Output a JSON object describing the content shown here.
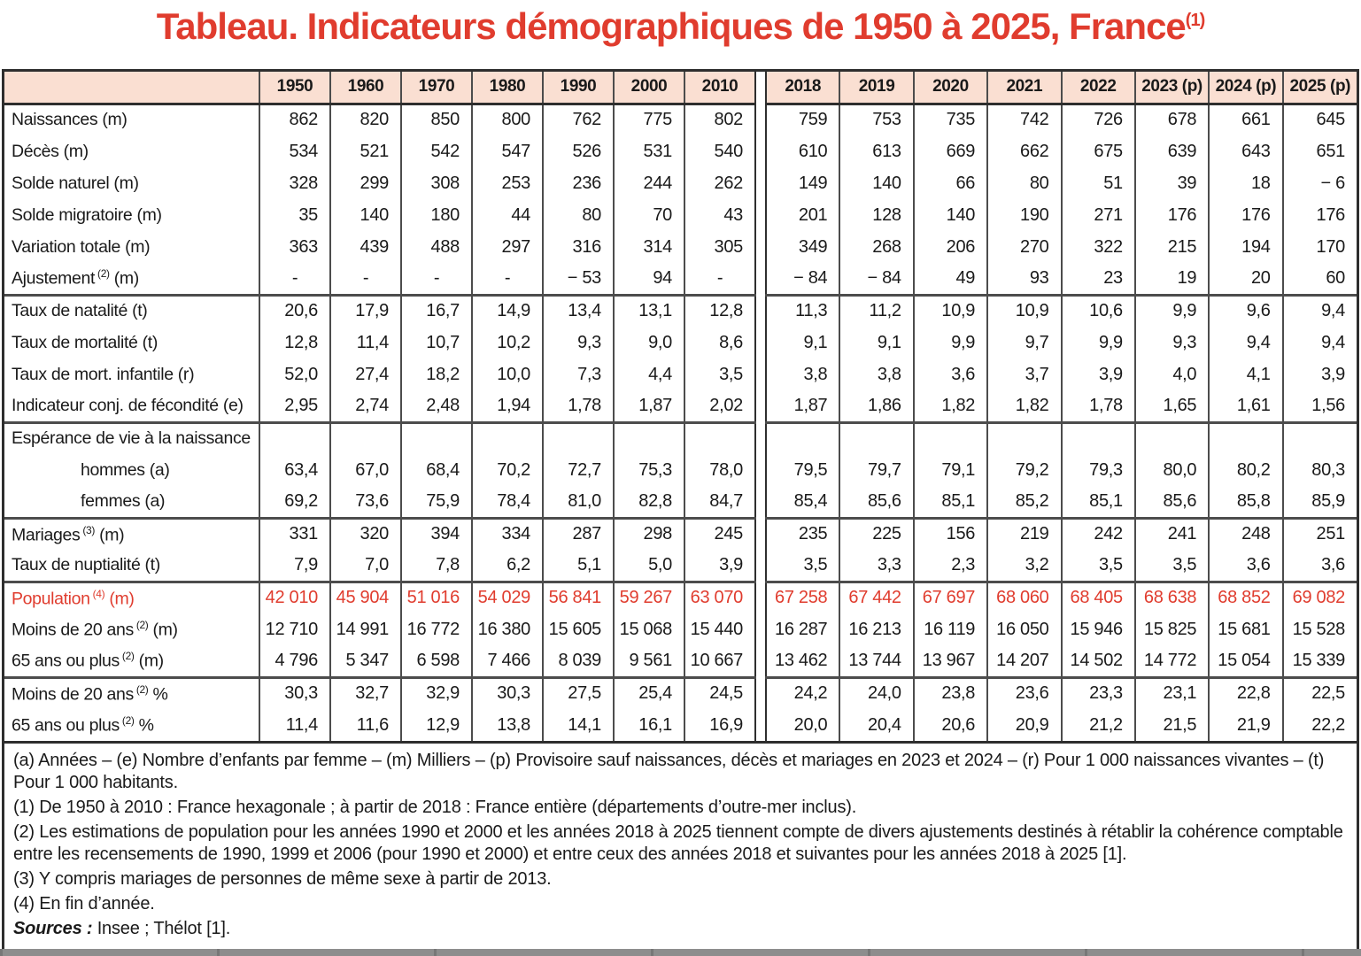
{
  "title": {
    "text": "Tableau. Indicateurs démographiques de 1950 à 2025, France",
    "superscript": "(1)"
  },
  "colors": {
    "accent_red": "#e03c2e",
    "header_bg": "#fadfd2",
    "grid_line": "#4c4c4c",
    "outer_border": "#2e2e2e",
    "bottom_bar": "#8a8a8a"
  },
  "table": {
    "columns": [
      "1950",
      "1960",
      "1970",
      "1980",
      "1990",
      "2000",
      "2010",
      "2018",
      "2019",
      "2020",
      "2021",
      "2022",
      "2023 (p)",
      "2024 (p)",
      "2025 (p)"
    ],
    "left_block_count": 7,
    "rows": [
      {
        "label": "Naissances (m)",
        "values": [
          "862",
          "820",
          "850",
          "800",
          "762",
          "775",
          "802",
          "759",
          "753",
          "735",
          "742",
          "726",
          "678",
          "661",
          "645"
        ]
      },
      {
        "label": "Décès (m)",
        "values": [
          "534",
          "521",
          "542",
          "547",
          "526",
          "531",
          "540",
          "610",
          "613",
          "669",
          "662",
          "675",
          "639",
          "643",
          "651"
        ]
      },
      {
        "label": "Solde naturel (m)",
        "values": [
          "328",
          "299",
          "308",
          "253",
          "236",
          "244",
          "262",
          "149",
          "140",
          "66",
          "80",
          "51",
          "39",
          "18",
          "− 6"
        ]
      },
      {
        "label": "Solde migratoire (m)",
        "values": [
          "35",
          "140",
          "180",
          "44",
          "80",
          "70",
          "43",
          "201",
          "128",
          "140",
          "190",
          "271",
          "176",
          "176",
          "176"
        ]
      },
      {
        "label": "Variation totale (m)",
        "values": [
          "363",
          "439",
          "488",
          "297",
          "316",
          "314",
          "305",
          "349",
          "268",
          "206",
          "270",
          "322",
          "215",
          "194",
          "170"
        ]
      },
      {
        "label": "Ajustement",
        "sup": "(2)",
        "suffix": " (m)",
        "values": [
          "-",
          "-",
          "-",
          "-",
          "− 53",
          "94",
          "-",
          "− 84",
          "− 84",
          "49",
          "93",
          "23",
          "19",
          "20",
          "60"
        ]
      },
      {
        "label": "Taux de natalité (t)",
        "group_start": true,
        "values": [
          "20,6",
          "17,9",
          "16,7",
          "14,9",
          "13,4",
          "13,1",
          "12,8",
          "11,3",
          "11,2",
          "10,9",
          "10,9",
          "10,6",
          "9,9",
          "9,6",
          "9,4"
        ]
      },
      {
        "label": "Taux de mortalité (t)",
        "values": [
          "12,8",
          "11,4",
          "10,7",
          "10,2",
          "9,3",
          "9,0",
          "8,6",
          "9,1",
          "9,1",
          "9,9",
          "9,7",
          "9,9",
          "9,3",
          "9,4",
          "9,4"
        ]
      },
      {
        "label": "Taux de mort. infantile (r)",
        "values": [
          "52,0",
          "27,4",
          "18,2",
          "10,0",
          "7,3",
          "4,4",
          "3,5",
          "3,8",
          "3,8",
          "3,6",
          "3,7",
          "3,9",
          "4,0",
          "4,1",
          "3,9"
        ]
      },
      {
        "label": "Indicateur conj. de fécondité (e)",
        "values": [
          "2,95",
          "2,74",
          "2,48",
          "1,94",
          "1,78",
          "1,87",
          "2,02",
          "1,87",
          "1,86",
          "1,82",
          "1,82",
          "1,78",
          "1,65",
          "1,61",
          "1,56"
        ]
      },
      {
        "label": "Espérance de vie à la naissance",
        "group_start": true,
        "values": [
          "",
          "",
          "",
          "",
          "",
          "",
          "",
          "",
          "",
          "",
          "",
          "",
          "",
          "",
          ""
        ]
      },
      {
        "label": "hommes (a)",
        "indent": true,
        "values": [
          "63,4",
          "67,0",
          "68,4",
          "70,2",
          "72,7",
          "75,3",
          "78,0",
          "79,5",
          "79,7",
          "79,1",
          "79,2",
          "79,3",
          "80,0",
          "80,2",
          "80,3"
        ]
      },
      {
        "label": "femmes (a)",
        "indent": true,
        "values": [
          "69,2",
          "73,6",
          "75,9",
          "78,4",
          "81,0",
          "82,8",
          "84,7",
          "85,4",
          "85,6",
          "85,1",
          "85,2",
          "85,1",
          "85,6",
          "85,8",
          "85,9"
        ]
      },
      {
        "label": "Mariages",
        "sup": "(3)",
        "suffix": " (m)",
        "group_start": true,
        "values": [
          "331",
          "320",
          "394",
          "334",
          "287",
          "298",
          "245",
          "235",
          "225",
          "156",
          "219",
          "242",
          "241",
          "248",
          "251"
        ]
      },
      {
        "label": "Taux de nuptialité (t)",
        "values": [
          "7,9",
          "7,0",
          "7,8",
          "6,2",
          "5,1",
          "5,0",
          "3,9",
          "3,5",
          "3,3",
          "2,3",
          "3,2",
          "3,5",
          "3,5",
          "3,6",
          "3,6"
        ]
      },
      {
        "label": "Population",
        "sup": "(4)",
        "suffix": " (m)",
        "red": true,
        "group_start": true,
        "values": [
          "42 010",
          "45 904",
          "51 016",
          "54 029",
          "56 841",
          "59 267",
          "63 070",
          "67 258",
          "67 442",
          "67 697",
          "68 060",
          "68 405",
          "68 638",
          "68 852",
          "69 082"
        ]
      },
      {
        "label": "Moins de 20 ans",
        "sup": "(2)",
        "suffix": " (m)",
        "values": [
          "12 710",
          "14 991",
          "16 772",
          "16 380",
          "15 605",
          "15 068",
          "15 440",
          "16 287",
          "16 213",
          "16 119",
          "16 050",
          "15 946",
          "15 825",
          "15 681",
          "15 528"
        ]
      },
      {
        "label": "65 ans ou plus",
        "sup": "(2)",
        "suffix": " (m)",
        "values": [
          "4 796",
          "5 347",
          "6 598",
          "7 466",
          "8 039",
          "9 561",
          "10 667",
          "13 462",
          "13 744",
          "13 967",
          "14 207",
          "14 502",
          "14 772",
          "15 054",
          "15 339"
        ]
      },
      {
        "label": "Moins de 20 ans",
        "sup": "(2)",
        "suffix": " %",
        "group_start": true,
        "values": [
          "30,3",
          "32,7",
          "32,9",
          "30,3",
          "27,5",
          "25,4",
          "24,5",
          "24,2",
          "24,0",
          "23,8",
          "23,6",
          "23,3",
          "23,1",
          "22,8",
          "22,5"
        ]
      },
      {
        "label": "65 ans ou plus",
        "sup": "(2)",
        "suffix": " %",
        "values": [
          "11,4",
          "11,6",
          "12,9",
          "13,8",
          "14,1",
          "16,1",
          "16,9",
          "20,0",
          "20,4",
          "20,6",
          "20,9",
          "21,2",
          "21,5",
          "21,9",
          "22,2"
        ]
      }
    ]
  },
  "footnotes": [
    "(a) Années – (e) Nombre d’enfants par femme – (m) Milliers – (p) Provisoire sauf naissances, décès et mariages en 2023 et 2024 – (r) Pour 1 000 naissances vivantes – (t) Pour 1 000 habitants.",
    "(1) De 1950 à 2010 : France hexagonale ; à partir de 2018 : France entière (départements d’outre-mer inclus).",
    "(2) Les estimations de population pour les années 1990 et 2000 et les années 2018 à 2025 tiennent compte de divers ajustements destinés à rétablir la cohérence comptable entre les recensements de 1990, 1999 et 2006 (pour 1990 et 2000) et entre ceux des années 2018 et suivantes pour les années 2018 à 2025 [1].",
    "(3) Y compris mariages de personnes de même sexe à partir de 2013.",
    "(4) En fin d’année."
  ],
  "sources": {
    "label": "Sources :",
    "text": " Insee ; Thélot [1]."
  }
}
